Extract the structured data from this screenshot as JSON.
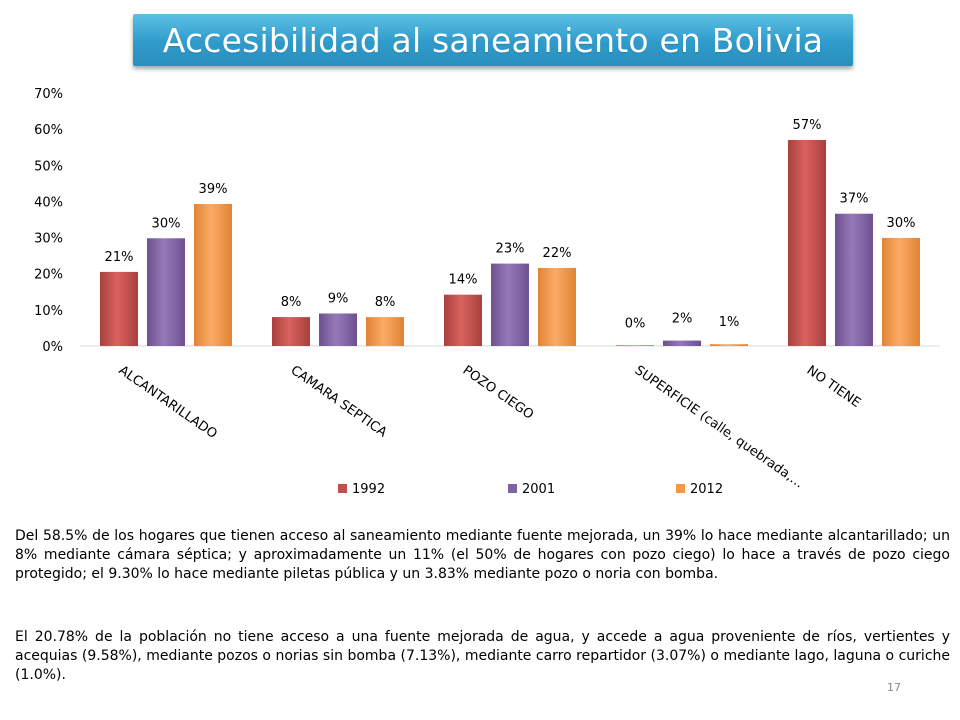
{
  "slide": {
    "title": "Accesibilidad al saneamiento en Bolivia",
    "paragraph_1": "Del 58.5% de los hogares que tienen acceso al saneamiento mediante fuente mejorada, un 39% lo hace mediante alcantarillado; un 8% mediante cámara séptica; y aproximadamente un 11% (el 50% de hogares con pozo ciego) lo hace a través de pozo ciego protegido; el 9.30% lo hace mediante piletas pública y un 3.83% mediante pozo o noria con bomba.",
    "paragraph_2": "El 20.78% de la población no tiene acceso a una fuente mejorada de agua, y accede a agua proveniente de ríos, vertientes y acequias (9.58%), mediante pozos o norias sin bomba (7.13%), mediante carro repartidor (3.07%) o mediante lago, laguna o curiche (1.0%).",
    "slide_number": "17"
  },
  "chart_data": {
    "type": "bar",
    "title": "",
    "xlabel": "",
    "ylabel": "",
    "ylim": [
      0,
      70
    ],
    "y_ticks": [
      "0%",
      "10%",
      "20%",
      "30%",
      "40%",
      "50%",
      "60%",
      "70%"
    ],
    "y_tick_values": [
      0,
      10,
      20,
      30,
      40,
      50,
      60,
      70
    ],
    "grid": false,
    "legend_position": "bottom",
    "categories": [
      "ALCANTARILLADO",
      "CAMARA SEPTICA",
      "POZO CIEGO",
      "SUPERFICIE (calle, quebrada,…",
      "NO TIENE"
    ],
    "series": [
      {
        "name": "1992",
        "color": "#c0504d",
        "values": [
          20.5,
          8,
          14.2,
          0,
          57
        ],
        "labels": [
          "21%",
          "8%",
          "14%",
          "0%",
          "57%"
        ]
      },
      {
        "name": "2001",
        "color": "#8064a2",
        "values": [
          29.8,
          9,
          22.8,
          1.5,
          36.6
        ],
        "labels": [
          "30%",
          "9%",
          "23%",
          "2%",
          "37%"
        ]
      },
      {
        "name": "2012",
        "color": "#f79646",
        "values": [
          39.3,
          8,
          21.6,
          0.5,
          29.9
        ],
        "labels": [
          "39%",
          "8%",
          "22%",
          "1%",
          "30%"
        ]
      }
    ]
  }
}
